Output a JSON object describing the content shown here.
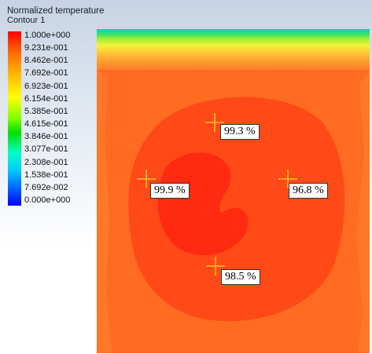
{
  "legend": {
    "title": "Normalized temperature",
    "subtitle": "Contour 1",
    "ticks": [
      "1.000e+000",
      "9.231e-001",
      "8.462e-001",
      "7.692e-001",
      "6.923e-001",
      "6.154e-001",
      "5.385e-001",
      "4.615e-001",
      "3.846e-001",
      "3.077e-001",
      "2.308e-001",
      "1.538e-001",
      "7.692e-002",
      "0.000e+000"
    ]
  },
  "probes": [
    {
      "label": "99.3 %"
    },
    {
      "label": "99.9 %"
    },
    {
      "label": "96.8 %"
    },
    {
      "label": "98.5 %"
    }
  ],
  "colors": {
    "outer_field": "#ff6b20",
    "inner_field": "#ff4a18",
    "hot_core": "#ff2a10",
    "crosshair": "#ffc020"
  }
}
